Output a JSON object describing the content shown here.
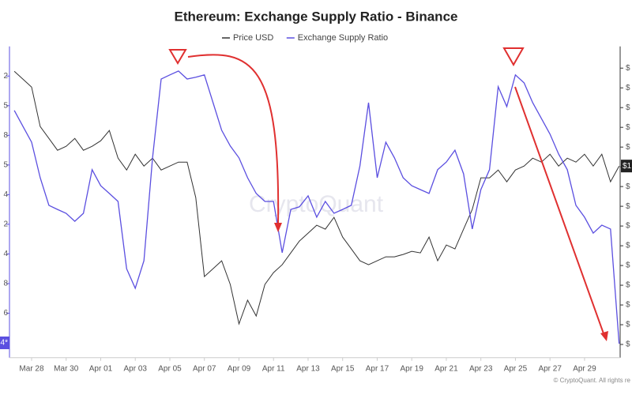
{
  "chart_data": {
    "type": "line",
    "title": "Ethereum: Exchange Supply Ratio - Binance",
    "watermark": "CryptoQuant",
    "footer": "© CryptoQuant. All rights re",
    "price_label": "$1",
    "x": [
      -1,
      -0.5,
      0,
      0.5,
      1,
      1.5,
      2,
      2.5,
      3,
      3.5,
      4,
      4.5,
      5,
      5.5,
      6,
      6.5,
      7,
      7.5,
      8,
      8.5,
      9,
      9.5,
      10,
      10.5,
      11,
      11.5,
      12,
      12.5,
      13,
      13.5,
      14,
      14.5,
      15,
      15.5,
      16,
      16.5,
      17,
      17.5,
      18,
      18.5,
      19,
      19.5,
      20,
      20.5,
      21,
      21.5,
      22,
      22.5,
      23,
      23.5,
      24,
      24.5,
      25,
      25.5,
      26,
      26.5,
      27,
      27.5,
      28,
      28.5,
      29,
      29.5,
      30,
      30.5,
      31,
      31.5,
      32,
      32.5,
      33,
      33.5,
      34
    ],
    "xlim": [
      -1.28,
      34.06
    ],
    "xticks": [
      {
        "value": 0,
        "label": "Mar 28"
      },
      {
        "value": 2,
        "label": "Mar 30"
      },
      {
        "value": 4,
        "label": "Apr 01"
      },
      {
        "value": 6,
        "label": "Apr 03"
      },
      {
        "value": 8,
        "label": "Apr 05"
      },
      {
        "value": 10,
        "label": "Apr 07"
      },
      {
        "value": 12,
        "label": "Apr 09"
      },
      {
        "value": 14,
        "label": "Apr 11"
      },
      {
        "value": 16,
        "label": "Apr 13"
      },
      {
        "value": 18,
        "label": "Apr 15"
      },
      {
        "value": 20,
        "label": "Apr 17"
      },
      {
        "value": 22,
        "label": "Apr 19"
      },
      {
        "value": 24,
        "label": "Apr 21"
      },
      {
        "value": 26,
        "label": "Apr 23"
      },
      {
        "value": 28,
        "label": "Apr 25"
      },
      {
        "value": 30,
        "label": "Apr 27"
      },
      {
        "value": 32,
        "label": "Apr 29"
      }
    ],
    "ylim": [
      -0.5,
      10
    ],
    "yticks": [
      {
        "value": 9,
        "label": "2"
      },
      {
        "value": 8,
        "label": "5"
      },
      {
        "value": 7,
        "label": "8"
      },
      {
        "value": 6,
        "label": "5"
      },
      {
        "value": 5,
        "label": "4"
      },
      {
        "value": 4,
        "label": "2"
      },
      {
        "value": 3,
        "label": "4"
      },
      {
        "value": 2,
        "label": "8"
      },
      {
        "value": 1,
        "label": "6"
      },
      {
        "value": 0,
        "label": "4*"
      }
    ],
    "y2lim": [
      -0.67,
      15.1
    ],
    "y2ticks": [
      {
        "value": 0,
        "label": "$"
      },
      {
        "value": 1,
        "label": "$"
      },
      {
        "value": 2,
        "label": "$"
      },
      {
        "value": 3,
        "label": "$"
      },
      {
        "value": 4,
        "label": "$"
      },
      {
        "value": 5,
        "label": "$"
      },
      {
        "value": 6,
        "label": "$"
      },
      {
        "value": 7,
        "label": "$"
      },
      {
        "value": 8,
        "label": "$"
      },
      {
        "value": 9,
        "label": "$"
      },
      {
        "value": 10,
        "label": "$"
      },
      {
        "value": 11,
        "label": "$"
      },
      {
        "value": 12,
        "label": "$"
      },
      {
        "value": 13,
        "label": "$"
      },
      {
        "value": 14,
        "label": "$"
      }
    ],
    "series": [
      {
        "name": "Price USD",
        "color": "#333333",
        "axis": "y2",
        "values": [
          13.84,
          13.44,
          13.04,
          11.04,
          10.44,
          9.84,
          10.04,
          10.44,
          9.84,
          10.04,
          10.32,
          10.84,
          9.44,
          8.84,
          9.64,
          9.04,
          9.44,
          8.84,
          9.04,
          9.24,
          9.24,
          7.44,
          3.44,
          3.84,
          4.24,
          3.04,
          1.04,
          2.24,
          1.44,
          3.04,
          3.64,
          4.04,
          4.64,
          5.24,
          5.64,
          6.04,
          5.84,
          6.44,
          5.44,
          4.84,
          4.24,
          4.04,
          4.24,
          4.44,
          4.44,
          4.56,
          4.72,
          4.64,
          5.44,
          4.24,
          5.04,
          4.84,
          5.84,
          6.84,
          8.44,
          8.44,
          8.84,
          8.24,
          8.84,
          9.04,
          9.44,
          9.24,
          9.64,
          9.04,
          9.44,
          9.24,
          9.64,
          9.04,
          9.64,
          8.24,
          9.04
        ]
      },
      {
        "name": "Exchange Supply Ratio",
        "color": "#5b4fe0",
        "values": [
          7.84,
          7.3,
          6.77,
          5.57,
          4.64,
          4.5,
          4.37,
          4.1,
          4.37,
          5.84,
          5.3,
          5.04,
          4.77,
          2.5,
          1.84,
          2.77,
          6.24,
          8.9,
          9.04,
          9.17,
          8.9,
          8.96,
          9.04,
          8.1,
          7.17,
          6.64,
          6.24,
          5.57,
          5.04,
          4.77,
          4.77,
          3.04,
          4.5,
          4.59,
          4.96,
          4.24,
          4.77,
          4.37,
          4.5,
          4.64,
          5.97,
          8.1,
          5.57,
          6.77,
          6.24,
          5.57,
          5.3,
          5.17,
          5.04,
          5.84,
          6.1,
          6.5,
          5.7,
          3.84,
          5.17,
          5.84,
          8.64,
          7.97,
          9.04,
          8.77,
          8.1,
          7.57,
          7.04,
          6.37,
          5.84,
          4.64,
          4.24,
          3.7,
          3.97,
          3.84,
          -0.03
        ]
      }
    ]
  }
}
